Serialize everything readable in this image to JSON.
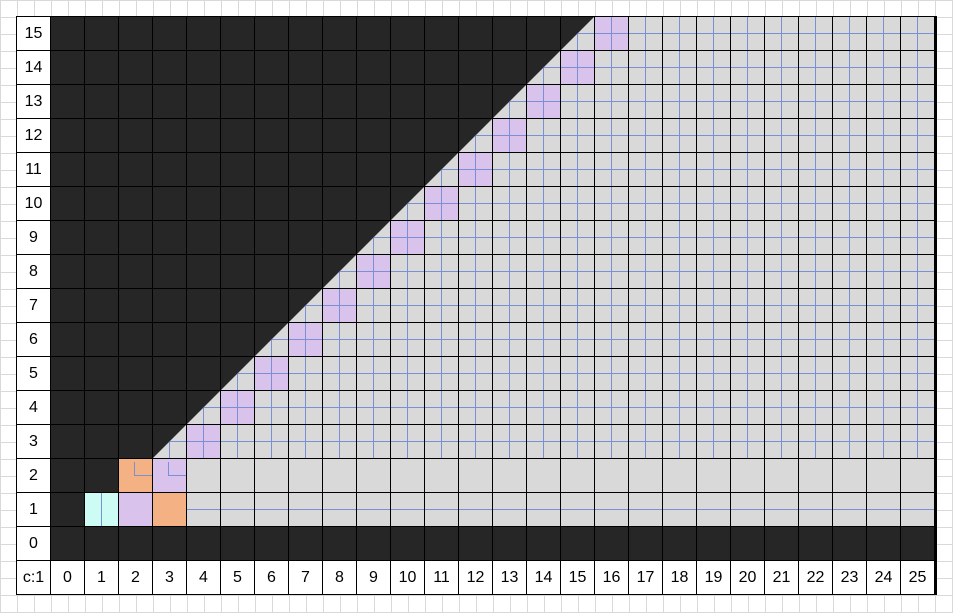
{
  "sheet": {
    "corner_label": "c:1",
    "col_labels": [
      "0",
      "1",
      "2",
      "3",
      "4",
      "5",
      "6",
      "7",
      "8",
      "9",
      "10",
      "11",
      "12",
      "13",
      "14",
      "15",
      "16",
      "17",
      "18",
      "19",
      "20",
      "21",
      "22",
      "23",
      "24",
      "25"
    ],
    "row_labels": [
      "15",
      "14",
      "13",
      "12",
      "11",
      "10",
      "9",
      "8",
      "7",
      "6",
      "5",
      "4",
      "3",
      "2",
      "1",
      "0"
    ]
  },
  "colors": {
    "dark": "#262626",
    "gray": "#d9d9d9",
    "lilac": "#d9c2ec",
    "orange": "#f4b183",
    "cyan": "#ccfcf4",
    "subgrid": "#7b8fd4"
  }
}
